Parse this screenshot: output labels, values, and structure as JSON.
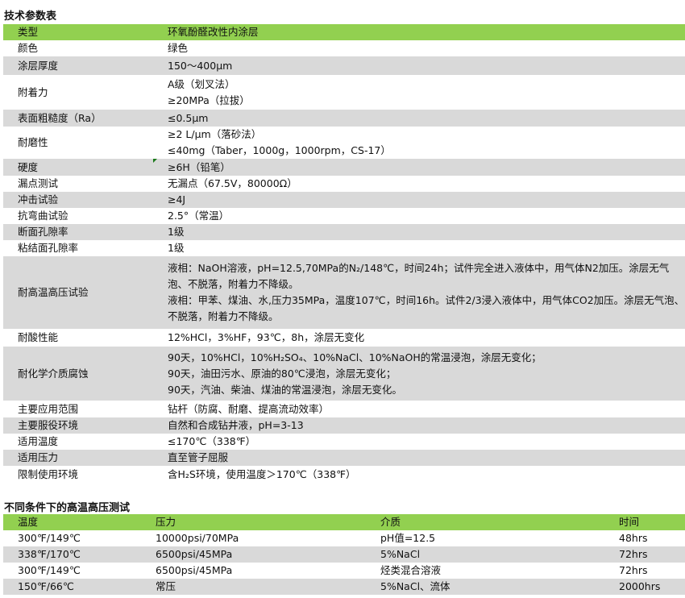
{
  "section1": {
    "title": "技术参数表",
    "header": [
      "类型",
      "环氧酚醛改性内涂层"
    ],
    "rows": [
      {
        "label": "颜色",
        "lines": [
          "绿色"
        ]
      },
      {
        "label": "涂层厚度",
        "lines": [
          "150～400μm"
        ]
      },
      {
        "label": "附着力",
        "lines": [
          "A级（划叉法）",
          "≥20MPa（拉拔）"
        ]
      },
      {
        "label": "表面粗糙度（Ra）",
        "lines": [
          "≤0.5μm"
        ]
      },
      {
        "label": "耐磨性",
        "lines": [
          "≥2 L/μm（落砂法）",
          "≤40mg（Taber，1000g，1000rpm，CS-17）"
        ]
      },
      {
        "label": "硬度",
        "lines": [
          "≥6H（铅笔）"
        ]
      },
      {
        "label": "漏点测试",
        "lines": [
          "无漏点（67.5V，80000Ω）"
        ]
      },
      {
        "label": "冲击试验",
        "lines": [
          "≥4J"
        ]
      },
      {
        "label": "抗弯曲试验",
        "lines": [
          "2.5°（常温）"
        ]
      },
      {
        "label": "断面孔隙率",
        "lines": [
          "1级"
        ]
      },
      {
        "label": "粘结面孔隙率",
        "lines": [
          "1级"
        ]
      },
      {
        "label": "耐高温高压试验",
        "lines": [
          "液相：NaOH溶液，pH=12.5,70MPa的N₂/148℃，时间24h；试件完全进入液体中，用气体N2加压。涂层无气泡、不脱落，附着力不降级。",
          "液相：甲苯、煤油、水,压力35MPa，温度107℃，时间16h。试件2/3浸入液体中，用气体CO2加压。涂层无气泡、不脱落，附着力不降级。"
        ]
      },
      {
        "label": "耐酸性能",
        "lines": [
          "12%HCl，3%HF，93℃，8h，涂层无变化"
        ]
      },
      {
        "label": "耐化学介质腐蚀",
        "lines": [
          "90天，10%HCl，10%H₂SO₄、10%NaCl、10%NaOH的常温浸泡，涂层无变化；",
          "90天，油田污水、原油的80℃浸泡，涂层无变化；",
          "90天，汽油、柴油、煤油的常温浸泡，涂层无变化。"
        ]
      },
      {
        "label": "主要应用范围",
        "lines": [
          "钻杆（防腐、耐磨、提高流动效率）"
        ]
      },
      {
        "label": "主要服役环境",
        "lines": [
          "自然和合成钻井液，pH=3-13"
        ]
      },
      {
        "label": "适用温度",
        "lines": [
          "≤170℃（338℉）"
        ]
      },
      {
        "label": "适用压力",
        "lines": [
          "直至管子屈服"
        ]
      },
      {
        "label": "限制使用环境",
        "lines": [
          "含H₂S环境，使用温度＞170℃（338℉）"
        ]
      }
    ]
  },
  "section2": {
    "title": "不同条件下的高温高压测试",
    "header": [
      "温度",
      "压力",
      "介质",
      "时间"
    ],
    "rows": [
      [
        "300℉/149℃",
        "10000psi/70MPa",
        "pH值=12.5",
        "48hrs"
      ],
      [
        "338℉/170℃",
        "6500psi/45MPa",
        "5%NaCl",
        "72hrs"
      ],
      [
        "300℉/149℃",
        "6500psi/45MPa",
        "烃类混合溶液",
        "72hrs"
      ],
      [
        "150℉/66℃",
        "常压",
        "5%NaCl、流体",
        "2000hrs"
      ]
    ]
  },
  "colors": {
    "header": "#92d050",
    "stripe": "#d9d9d9"
  }
}
